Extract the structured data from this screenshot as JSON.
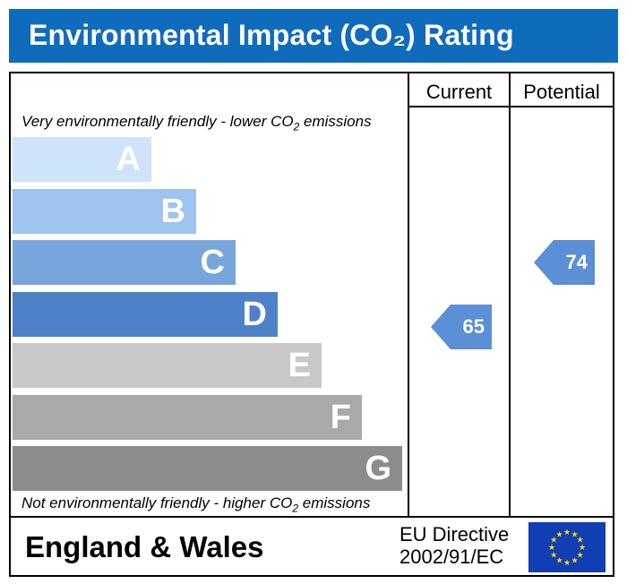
{
  "title": "Environmental Impact (CO₂) Rating",
  "columns": {
    "current": "Current",
    "potential": "Potential"
  },
  "captions": {
    "top": "Very environmentally friendly - lower CO",
    "top_sub": "2",
    "top_end": " emissions",
    "bottom": "Not environmentally friendly - higher CO",
    "bottom_sub": "2",
    "bottom_end": " emissions"
  },
  "chart_data": {
    "type": "bar",
    "categories": [
      "A",
      "B",
      "C",
      "D",
      "E",
      "F",
      "G"
    ],
    "band_colors": [
      "#cfe3fa",
      "#9cc4ef",
      "#76a6db",
      "#4f81c9",
      "#c8c8c8",
      "#a9a9a9",
      "#8c8c8c"
    ],
    "current": {
      "value": 65,
      "band": "D"
    },
    "potential": {
      "value": 74,
      "band": "C"
    },
    "arrow_color": "#5b8fd6"
  },
  "footer": {
    "region": "England & Wales",
    "directive_line1": "EU Directive",
    "directive_line2": "2002/91/EC",
    "flag_icon": "eu-flag-icon"
  }
}
